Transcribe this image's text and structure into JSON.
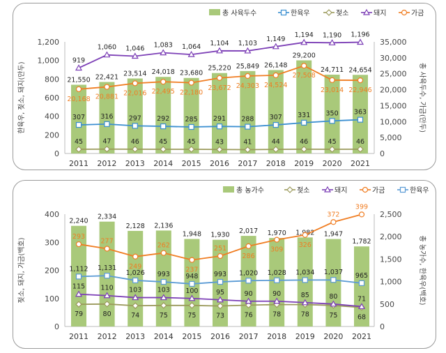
{
  "chart_data": [
    {
      "type": "bar+line",
      "categories": [
        "2011",
        "2012",
        "2013",
        "2014",
        "2015",
        "2016",
        "2017",
        "2018",
        "2019",
        "2020",
        "2021"
      ],
      "ylabel_left": "한육우, 젖소, 돼지(만두)",
      "ylabel_right": "총 사육두수, 가금(만두)",
      "ylim_left": [
        0,
        1200
      ],
      "ylim_right": [
        0,
        35000
      ],
      "yticks_left": [
        "0",
        "200",
        "400",
        "600",
        "800",
        "1,000",
        "1,200"
      ],
      "yticks_right": [
        "0",
        "5,000",
        "10,000",
        "15,000",
        "20,000",
        "25,000",
        "30,000",
        "35,000"
      ],
      "legend_position": "top-right",
      "grid": false,
      "series": [
        {
          "name": "총 사육두수",
          "type": "bar",
          "axis": "right",
          "color": "#a9c97a",
          "values": [
            21550,
            22421,
            23514,
            24018,
            23680,
            25220,
            25849,
            26148,
            29200,
            24711,
            24654
          ]
        },
        {
          "name": "한육우",
          "type": "line",
          "axis": "left",
          "marker": "square",
          "color": "#3b8fd1",
          "values": [
            307,
            316,
            297,
            292,
            285,
            291,
            288,
            307,
            331,
            350,
            363
          ]
        },
        {
          "name": "젖소",
          "type": "line",
          "axis": "left",
          "marker": "diamond",
          "color": "#9b9a5c",
          "values": [
            45,
            47,
            46,
            45,
            45,
            43,
            41,
            44,
            46,
            45,
            46
          ]
        },
        {
          "name": "돼지",
          "type": "line",
          "axis": "left",
          "marker": "triangle",
          "color": "#7c3fb6",
          "values": [
            919,
            1060,
            1046,
            1083,
            1064,
            1104,
            1103,
            1149,
            1194,
            1190,
            1196
          ]
        },
        {
          "name": "가금",
          "type": "line",
          "axis": "right",
          "marker": "circle",
          "color": "#f07d22",
          "values": [
            20168,
            20881,
            22016,
            22495,
            22180,
            23672,
            24303,
            24524,
            27508,
            23014,
            22946
          ]
        }
      ]
    },
    {
      "type": "bar+line",
      "categories": [
        "2011",
        "2012",
        "2013",
        "2014",
        "2015",
        "2016",
        "2017",
        "2018",
        "2019",
        "2020",
        "2021"
      ],
      "ylabel_left": "젖소, 돼지, 가금(백호)",
      "ylabel_right": "총 농가수, 한육우(백호)",
      "ylim_left": [
        0,
        400
      ],
      "ylim_right": [
        0,
        2500
      ],
      "yticks_left": [
        "0",
        "100",
        "200",
        "300",
        "400"
      ],
      "yticks_right": [
        "0",
        "500",
        "1,000",
        "1,500",
        "2,000",
        "2,500"
      ],
      "legend_position": "top-right",
      "grid": false,
      "series": [
        {
          "name": "총 농가수",
          "type": "bar",
          "axis": "right",
          "color": "#a9c97a",
          "values": [
            2240,
            2334,
            2128,
            2136,
            1948,
            1930,
            2017,
            1970,
            1982,
            1947,
            1782
          ]
        },
        {
          "name": "젖소",
          "type": "line",
          "axis": "left",
          "marker": "diamond",
          "color": "#9b9a5c",
          "values": [
            79,
            80,
            74,
            75,
            75,
            73,
            76,
            78,
            78,
            75,
            68
          ]
        },
        {
          "name": "돼지",
          "type": "line",
          "axis": "left",
          "marker": "triangle",
          "color": "#7c3fb6",
          "values": [
            115,
            110,
            103,
            103,
            100,
            95,
            90,
            90,
            85,
            80,
            71
          ]
        },
        {
          "name": "가금",
          "type": "line",
          "axis": "left",
          "marker": "circle",
          "color": "#f07d22",
          "values": [
            293,
            277,
            249,
            262,
            237,
            251,
            286,
            309,
            326,
            372,
            399
          ]
        },
        {
          "name": "한육우",
          "type": "line",
          "axis": "right",
          "marker": "square",
          "color": "#5b9bd5",
          "values": [
            1112,
            1131,
            1026,
            993,
            948,
            993,
            1020,
            1028,
            1034,
            1037,
            965
          ]
        }
      ]
    }
  ]
}
